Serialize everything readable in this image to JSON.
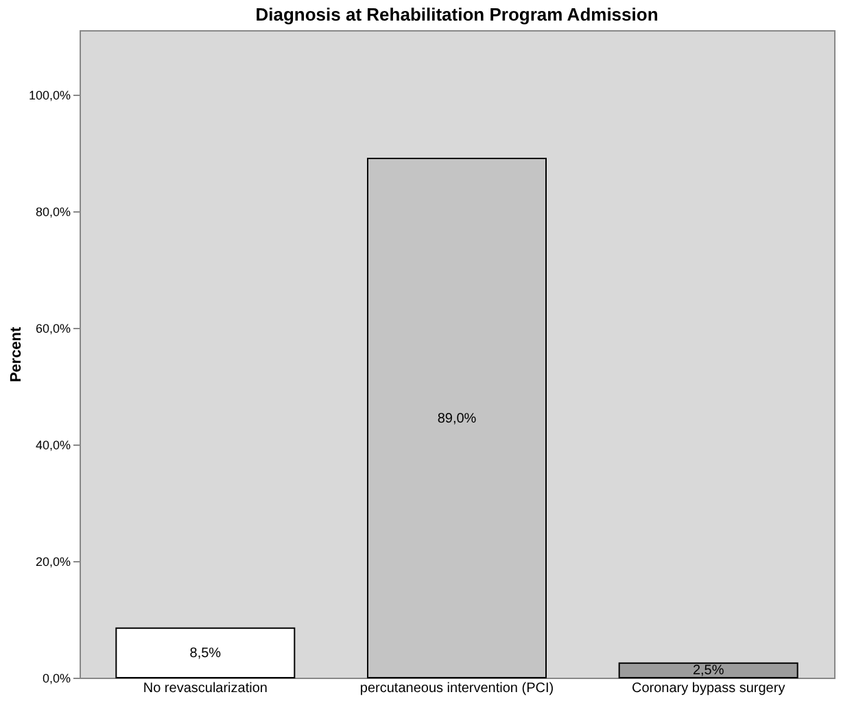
{
  "chart_data": {
    "type": "bar",
    "title": "Diagnosis at Rehabilitation Program Admission",
    "ylabel": "Percent",
    "categories": [
      "No revascularization",
      "percutaneous intervention (PCI)",
      "Coronary bypass surgery"
    ],
    "values": [
      8.5,
      89.0,
      2.5
    ],
    "colors": [
      "#ffffff",
      "#c4c4c4",
      "#9c9c9c"
    ],
    "value_labels": [
      "8,5%",
      "89,0%",
      "2,5%"
    ],
    "ylim": [
      0,
      111
    ],
    "yticks": [
      {
        "value": 0,
        "label": "0,0%"
      },
      {
        "value": 20,
        "label": "20,0%"
      },
      {
        "value": 40,
        "label": "40,0%"
      },
      {
        "value": 60,
        "label": "60,0%"
      },
      {
        "value": 80,
        "label": "80,0%"
      },
      {
        "value": 100,
        "label": "100,0%"
      }
    ],
    "grid": false
  }
}
